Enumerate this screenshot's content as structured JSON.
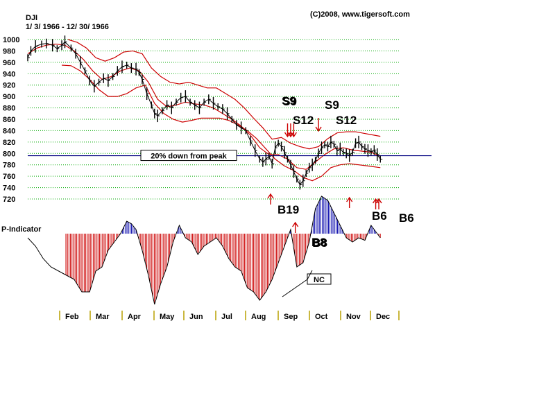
{
  "chart_data": {
    "type": "line",
    "ticker": "DJI",
    "date_range": "1/ 3/ 1966 - 12/ 30/ 1966",
    "copyright": "(C)2008, www.tigersoft.com",
    "ylim": [
      720,
      1000
    ],
    "y_ticks": [
      1000,
      980,
      960,
      940,
      920,
      900,
      880,
      860,
      840,
      820,
      800,
      780,
      760,
      740,
      720
    ],
    "months": [
      "Feb",
      "Mar",
      "Apr",
      "May",
      "Jun",
      "Jul",
      "Aug",
      "Sep",
      "Oct",
      "Nov",
      "Dec"
    ],
    "x_range": [
      0,
      12
    ],
    "reference_line": {
      "value": 796,
      "label": "20% down from peak"
    },
    "series": [
      {
        "name": "DJI",
        "x": [
          0.0,
          0.1,
          0.25,
          0.45,
          0.6,
          0.8,
          0.95,
          1.1,
          1.2,
          1.4,
          1.55,
          1.7,
          1.85,
          2.0,
          2.15,
          2.3,
          2.45,
          2.6,
          2.75,
          2.9,
          3.05,
          3.2,
          3.35,
          3.5,
          3.6,
          3.7,
          3.85,
          4.0,
          4.1,
          4.2,
          4.35,
          4.5,
          4.65,
          4.8,
          4.95,
          5.1,
          5.25,
          5.4,
          5.55,
          5.7,
          5.85,
          6.0,
          6.15,
          6.3,
          6.45,
          6.6,
          6.75,
          6.9,
          7.05,
          7.2,
          7.35,
          7.5,
          7.6,
          7.7,
          7.8,
          7.9,
          8.0,
          8.1,
          8.2,
          8.3,
          8.4,
          8.5,
          8.6,
          8.7,
          8.8,
          8.9,
          9.0,
          9.1,
          9.2,
          9.3,
          9.4,
          9.5,
          9.6,
          9.7,
          9.8,
          9.9,
          10.0,
          10.1,
          10.2,
          10.3,
          10.4,
          10.5,
          10.6,
          10.7,
          10.8,
          10.9,
          11.0,
          11.1,
          11.2,
          11.3,
          11.4
        ],
        "values": [
          968,
          980,
          988,
          992,
          993,
          990,
          984,
          990,
          996,
          985,
          975,
          960,
          945,
          928,
          918,
          925,
          932,
          928,
          935,
          945,
          952,
          955,
          950,
          948,
          942,
          930,
          905,
          885,
          870,
          866,
          875,
          885,
          880,
          890,
          898,
          900,
          890,
          885,
          880,
          890,
          895,
          888,
          882,
          878,
          870,
          860,
          850,
          845,
          840,
          822,
          805,
          790,
          785,
          790,
          795,
          782,
          810,
          818,
          812,
          802,
          790,
          780,
          768,
          755,
          745,
          752,
          765,
          775,
          780,
          788,
          800,
          810,
          815,
          812,
          820,
          816,
          805,
          808,
          802,
          800,
          796,
          802,
          818,
          820,
          812,
          808,
          805,
          803,
          806,
          798,
          790
        ]
      },
      {
        "name": "Upper Band",
        "x": [
          1.3,
          1.6,
          1.9,
          2.2,
          2.5,
          2.8,
          3.1,
          3.4,
          3.7,
          4.0,
          4.3,
          4.6,
          4.9,
          5.2,
          5.5,
          5.8,
          6.1,
          6.4,
          6.7,
          7.0,
          7.3,
          7.6,
          7.9,
          8.2,
          8.5,
          8.8,
          9.1,
          9.4,
          9.7,
          10.0,
          10.3,
          10.6,
          10.9,
          11.2,
          11.4
        ],
        "values": [
          1000,
          995,
          985,
          968,
          962,
          968,
          978,
          980,
          975,
          950,
          935,
          925,
          922,
          925,
          920,
          915,
          915,
          905,
          895,
          880,
          862,
          845,
          825,
          828,
          818,
          812,
          808,
          812,
          826,
          836,
          838,
          838,
          835,
          832,
          830
        ]
      },
      {
        "name": "Middle Band",
        "x": [
          0.0,
          0.3,
          0.6,
          0.9,
          1.2,
          1.5,
          1.8,
          2.1,
          2.4,
          2.7,
          3.0,
          3.3,
          3.6,
          3.9,
          4.2,
          4.5,
          4.8,
          5.1,
          5.4,
          5.7,
          6.0,
          6.3,
          6.6,
          6.9,
          7.2,
          7.5,
          7.8,
          8.1,
          8.4,
          8.7,
          9.0,
          9.3,
          9.6,
          9.9,
          10.2,
          10.5,
          10.8,
          11.1,
          11.4
        ],
        "values": [
          975,
          985,
          990,
          992,
          990,
          980,
          965,
          945,
          930,
          935,
          945,
          950,
          945,
          925,
          895,
          882,
          885,
          890,
          887,
          885,
          880,
          870,
          860,
          848,
          832,
          810,
          798,
          798,
          790,
          775,
          772,
          785,
          798,
          808,
          810,
          806,
          804,
          802,
          795
        ]
      },
      {
        "name": "Lower Band",
        "x": [
          1.1,
          1.4,
          1.7,
          2.0,
          2.3,
          2.6,
          2.9,
          3.2,
          3.5,
          3.8,
          4.1,
          4.4,
          4.7,
          5.0,
          5.3,
          5.6,
          5.9,
          6.2,
          6.5,
          6.8,
          7.1,
          7.4,
          7.7,
          8.0,
          8.3,
          8.6,
          8.9,
          9.2,
          9.5,
          9.8,
          10.1,
          10.4,
          10.7,
          11.0,
          11.4
        ],
        "values": [
          955,
          954,
          945,
          930,
          912,
          900,
          900,
          905,
          915,
          920,
          888,
          870,
          860,
          855,
          858,
          862,
          862,
          862,
          858,
          850,
          840,
          826,
          808,
          790,
          778,
          770,
          758,
          752,
          760,
          775,
          780,
          782,
          780,
          778,
          775
        ]
      }
    ],
    "p_indicator": {
      "label": "P-Indicator",
      "x": [
        0.0,
        0.25,
        0.5,
        0.75,
        1.0,
        1.25,
        1.5,
        1.75,
        2.0,
        2.2,
        2.4,
        2.6,
        2.8,
        3.0,
        3.2,
        3.35,
        3.5,
        3.7,
        3.9,
        4.1,
        4.3,
        4.5,
        4.7,
        4.9,
        5.1,
        5.3,
        5.5,
        5.7,
        5.9,
        6.1,
        6.3,
        6.5,
        6.7,
        6.9,
        7.1,
        7.3,
        7.5,
        7.7,
        7.9,
        8.1,
        8.3,
        8.5,
        8.7,
        8.9,
        9.1,
        9.3,
        9.5,
        9.7,
        9.9,
        10.1,
        10.3,
        10.5,
        10.7,
        10.9,
        11.1,
        11.3,
        11.4
      ],
      "values": [
        -5,
        -15,
        -30,
        -40,
        -45,
        -50,
        -55,
        -70,
        -70,
        -45,
        -40,
        -20,
        -10,
        0,
        15,
        12,
        5,
        -20,
        -50,
        -85,
        -60,
        -40,
        -10,
        10,
        -5,
        -10,
        -25,
        -15,
        -10,
        -5,
        -15,
        -30,
        -40,
        -45,
        -65,
        -70,
        -80,
        -70,
        -55,
        -35,
        -15,
        5,
        -40,
        -35,
        -10,
        30,
        45,
        40,
        25,
        10,
        -5,
        -10,
        -5,
        -8,
        10,
        0,
        -5
      ]
    },
    "annotations": [
      {
        "text": "S9",
        "x": 8.45,
        "y": 880,
        "kind": "sell",
        "bold_shadow": true
      },
      {
        "text": "S12",
        "x": 8.5,
        "y": 848,
        "kind": "sell"
      },
      {
        "text": "S9",
        "x": 9.4,
        "y": 848,
        "kind": "sell"
      },
      {
        "text": "S12",
        "x": 9.6,
        "y": 826,
        "kind": "sell"
      },
      {
        "text": "B19",
        "x": 7.85,
        "y": 726,
        "kind": "buy"
      },
      {
        "text": "B8",
        "x": 8.8,
        "y": null,
        "kind": "buy",
        "bold_shadow": true
      },
      {
        "text": "B6",
        "x": 10.4,
        "y": null,
        "kind": "buy"
      },
      {
        "text": "B6",
        "x": 11.3,
        "y": null,
        "kind": "buy"
      },
      {
        "text": "NC",
        "x": 9.0,
        "y": null,
        "kind": "box"
      }
    ],
    "sell_arrows_x": [
      8.4,
      8.5,
      8.6,
      9.4
    ],
    "buy_arrows_x": [
      7.85,
      8.65,
      10.4,
      11.25,
      11.35
    ],
    "colors": {
      "price": "#000000",
      "bands": "#cc0000",
      "reference": "#000080",
      "grid": "#00aa00",
      "indicator_pos": "#0000aa",
      "indicator_neg": "#cc0000",
      "arrow": "#cc0000"
    }
  }
}
